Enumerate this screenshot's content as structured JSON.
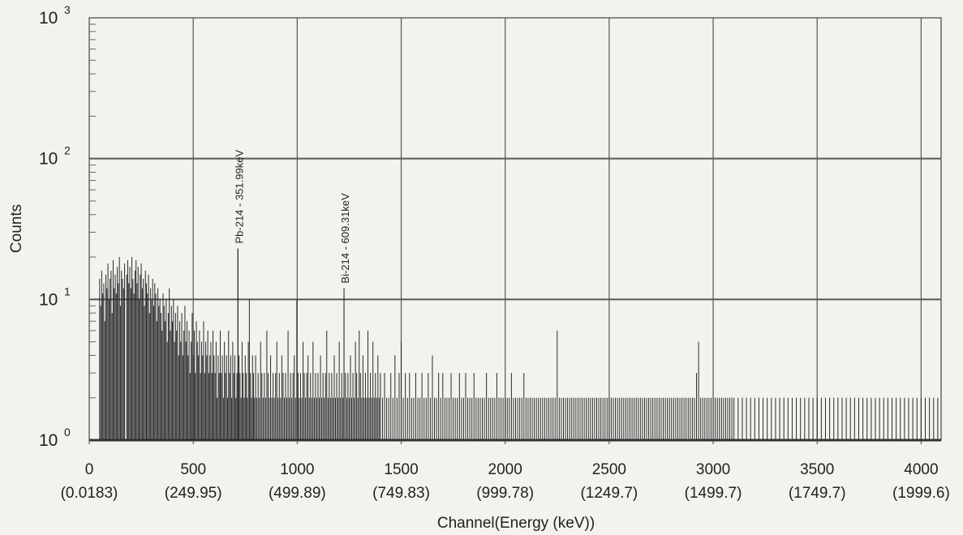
{
  "chart_data": {
    "type": "bar",
    "title": "",
    "xlabel": "Channel(Energy (keV))",
    "ylabel": "Counts",
    "xlim": [
      0,
      4096
    ],
    "ylim": [
      1,
      1000
    ],
    "yscale": "log",
    "grid": true,
    "x_ticks": [
      {
        "value": 0,
        "channel": "0",
        "energy": "(0.0183)"
      },
      {
        "value": 500,
        "channel": "500",
        "energy": "(249.95)"
      },
      {
        "value": 1000,
        "channel": "1000",
        "energy": "(499.89)"
      },
      {
        "value": 1500,
        "channel": "1500",
        "energy": "(749.83)"
      },
      {
        "value": 2000,
        "channel": "2000",
        "energy": "(999.78)"
      },
      {
        "value": 2500,
        "channel": "2500",
        "energy": "(1249.7)"
      },
      {
        "value": 3000,
        "channel": "3000",
        "energy": "(1499.7)"
      },
      {
        "value": 3500,
        "channel": "3500",
        "energy": "(1749.7)"
      },
      {
        "value": 4000,
        "channel": "4000",
        "energy": "(1999.6)"
      }
    ],
    "y_ticks": [
      {
        "value": 1,
        "base": "10",
        "exp": "0"
      },
      {
        "value": 10,
        "base": "10",
        "exp": "1"
      },
      {
        "value": 100,
        "base": "10",
        "exp": "2"
      },
      {
        "value": 1000,
        "base": "10",
        "exp": "3"
      }
    ],
    "annotations": [
      {
        "channel": 715,
        "counts": 23,
        "text": "Pb-214 - 351.99keV"
      },
      {
        "channel": 1225,
        "counts": 12,
        "text": "Bi-214 - 609.31keV"
      }
    ],
    "spectrum_channels": [
      50,
      55,
      60,
      65,
      70,
      75,
      80,
      85,
      90,
      95,
      100,
      105,
      110,
      115,
      120,
      125,
      130,
      135,
      140,
      145,
      150,
      155,
      160,
      165,
      170,
      175,
      180,
      185,
      190,
      195,
      200,
      205,
      210,
      215,
      220,
      225,
      230,
      235,
      240,
      245,
      250,
      255,
      260,
      265,
      270,
      275,
      280,
      285,
      290,
      295,
      300,
      305,
      310,
      315,
      320,
      325,
      330,
      335,
      340,
      345,
      350,
      355,
      360,
      365,
      370,
      375,
      380,
      385,
      390,
      395,
      400,
      405,
      410,
      415,
      420,
      425,
      430,
      435,
      440,
      445,
      450,
      455,
      460,
      465,
      470,
      475,
      480,
      485,
      490,
      495,
      500,
      505,
      510,
      515,
      520,
      525,
      530,
      535,
      540,
      545,
      550,
      555,
      560,
      565,
      570,
      575,
      580,
      585,
      590,
      595,
      600,
      605,
      610,
      615,
      620,
      625,
      630,
      635,
      640,
      645,
      650,
      655,
      660,
      665,
      670,
      675,
      680,
      685,
      690,
      695,
      700,
      705,
      710,
      715,
      720,
      725,
      730,
      735,
      740,
      745,
      750,
      755,
      760,
      765,
      770,
      775,
      780,
      785,
      790,
      795,
      800,
      806,
      812,
      818,
      824,
      830,
      836,
      842,
      848,
      854,
      860,
      866,
      872,
      878,
      884,
      890,
      896,
      902,
      908,
      914,
      920,
      926,
      932,
      938,
      944,
      950,
      956,
      962,
      968,
      974,
      980,
      986,
      992,
      998,
      1004,
      1010,
      1016,
      1022,
      1028,
      1034,
      1040,
      1046,
      1052,
      1058,
      1064,
      1070,
      1076,
      1082,
      1088,
      1094,
      1100,
      1106,
      1112,
      1118,
      1124,
      1130,
      1136,
      1142,
      1148,
      1154,
      1160,
      1166,
      1172,
      1178,
      1184,
      1190,
      1196,
      1202,
      1208,
      1214,
      1220,
      1225,
      1232,
      1238,
      1244,
      1250,
      1256,
      1262,
      1268,
      1274,
      1280,
      1286,
      1292,
      1298,
      1304,
      1310,
      1316,
      1322,
      1328,
      1334,
      1340,
      1346,
      1352,
      1358,
      1364,
      1370,
      1376,
      1382,
      1388,
      1394,
      1400,
      1410,
      1420,
      1430,
      1440,
      1450,
      1460,
      1470,
      1480,
      1490,
      1500,
      1510,
      1520,
      1530,
      1540,
      1550,
      1560,
      1570,
      1580,
      1590,
      1600,
      1610,
      1620,
      1630,
      1640,
      1650,
      1660,
      1670,
      1680,
      1690,
      1700,
      1710,
      1720,
      1730,
      1740,
      1750,
      1760,
      1770,
      1780,
      1790,
      1800,
      1810,
      1820,
      1830,
      1840,
      1850,
      1860,
      1870,
      1880,
      1890,
      1900,
      1910,
      1920,
      1930,
      1940,
      1950,
      1960,
      1970,
      1980,
      1990,
      2000,
      2010,
      2020,
      2030,
      2040,
      2050,
      2060,
      2070,
      2080,
      2090,
      2100,
      2110,
      2120,
      2130,
      2140,
      2150,
      2160,
      2170,
      2180,
      2190,
      2200,
      2210,
      2220,
      2230,
      2240,
      2250,
      2260,
      2270,
      2280,
      2290,
      2300,
      2310,
      2320,
      2330,
      2340,
      2350,
      2360,
      2370,
      2380,
      2390,
      2400,
      2410,
      2420,
      2430,
      2440,
      2450,
      2460,
      2470,
      2480,
      2490,
      2500,
      2510,
      2520,
      2530,
      2540,
      2550,
      2560,
      2570,
      2580,
      2590,
      2600,
      2610,
      2620,
      2630,
      2640,
      2650,
      2660,
      2670,
      2680,
      2690,
      2700,
      2710,
      2720,
      2730,
      2740,
      2750,
      2760,
      2770,
      2780,
      2790,
      2800,
      2810,
      2820,
      2830,
      2840,
      2850,
      2860,
      2870,
      2880,
      2890,
      2900,
      2910,
      2920,
      2930,
      2940,
      2950,
      2960,
      2970,
      2980,
      2990,
      3000,
      3010,
      3020,
      3030,
      3040,
      3050,
      3060,
      3070,
      3080,
      3090,
      3100,
      3120,
      3140,
      3160,
      3180,
      3200,
      3220,
      3240,
      3260,
      3280,
      3300,
      3320,
      3340,
      3360,
      3380,
      3400,
      3420,
      3440,
      3460,
      3480,
      3500,
      3520,
      3540,
      3560,
      3580,
      3600,
      3620,
      3640,
      3660,
      3680,
      3700,
      3720,
      3740,
      3760,
      3780,
      3800,
      3820,
      3840,
      3860,
      3880,
      3900,
      3920,
      3940,
      3960,
      3980,
      4000,
      4020,
      4040,
      4060,
      4080
    ],
    "spectrum_counts": [
      14,
      9,
      16,
      11,
      13,
      7,
      15,
      12,
      18,
      10,
      14,
      16,
      8,
      19,
      12,
      15,
      11,
      17,
      13,
      20,
      9,
      16,
      14,
      12,
      18,
      1,
      15,
      19,
      13,
      17,
      12,
      20,
      14,
      11,
      16,
      19,
      13,
      17,
      10,
      15,
      18,
      12,
      14,
      9,
      16,
      13,
      11,
      15,
      8,
      12,
      10,
      14,
      9,
      13,
      11,
      7,
      12,
      9,
      10,
      8,
      6,
      11,
      9,
      7,
      10,
      5,
      8,
      12,
      6,
      9,
      7,
      10,
      5,
      8,
      6,
      9,
      4,
      7,
      5,
      8,
      4,
      6,
      9,
      5,
      7,
      4,
      6,
      3,
      5,
      8,
      4,
      6,
      3,
      7,
      5,
      4,
      6,
      3,
      5,
      4,
      7,
      3,
      5,
      4,
      6,
      3,
      4,
      5,
      3,
      6,
      4,
      3,
      5,
      2,
      4,
      3,
      6,
      3,
      4,
      2,
      5,
      3,
      4,
      2,
      6,
      3,
      4,
      2,
      5,
      3,
      4,
      2,
      3,
      23,
      4,
      3,
      2,
      5,
      3,
      2,
      4,
      3,
      2,
      5,
      10,
      3,
      2,
      4,
      3,
      2,
      4,
      2,
      3,
      2,
      5,
      3,
      2,
      3,
      2,
      6,
      3,
      2,
      4,
      2,
      3,
      2,
      3,
      5,
      2,
      3,
      2,
      4,
      3,
      2,
      3,
      2,
      6,
      2,
      3,
      2,
      3,
      4,
      2,
      10,
      3,
      2,
      3,
      2,
      5,
      3,
      2,
      3,
      4,
      2,
      3,
      2,
      5,
      2,
      3,
      2,
      3,
      2,
      4,
      2,
      3,
      2,
      3,
      6,
      2,
      3,
      2,
      3,
      2,
      4,
      2,
      3,
      2,
      5,
      2,
      3,
      2,
      12,
      3,
      2,
      3,
      2,
      4,
      2,
      3,
      2,
      5,
      3,
      2,
      6,
      3,
      2,
      4,
      2,
      3,
      2,
      6,
      2,
      3,
      2,
      5,
      2,
      3,
      2,
      4,
      2,
      3,
      2,
      3,
      2,
      2,
      3,
      2,
      4,
      2,
      3,
      5,
      2,
      3,
      2,
      3,
      2,
      2,
      3,
      2,
      2,
      3,
      2,
      2,
      3,
      2,
      4,
      2,
      2,
      3,
      2,
      3,
      2,
      2,
      2,
      3,
      2,
      2,
      2,
      3,
      2,
      2,
      3,
      2,
      2,
      2,
      3,
      2,
      2,
      2,
      2,
      2,
      3,
      2,
      2,
      2,
      2,
      3,
      2,
      2,
      2,
      2,
      2,
      2,
      3,
      2,
      2,
      2,
      2,
      2,
      3,
      2,
      2,
      2,
      2,
      2,
      2,
      2,
      2,
      2,
      2,
      2,
      2,
      2,
      2,
      2,
      6,
      2,
      2,
      2,
      2,
      2,
      2,
      2,
      2,
      2,
      2,
      2,
      2,
      2,
      2,
      2,
      2,
      2,
      2,
      2,
      2,
      2,
      2,
      2,
      2,
      2,
      2,
      2,
      2,
      2,
      2,
      2,
      2,
      2,
      2,
      2,
      2,
      2,
      2,
      2,
      2,
      2,
      2,
      2,
      2,
      2,
      2,
      2,
      2,
      2,
      2,
      2,
      2,
      2,
      2,
      2,
      2,
      2,
      2,
      2,
      2,
      2,
      2,
      2,
      2,
      2,
      2,
      3,
      5,
      2,
      2,
      2,
      2,
      2,
      2,
      2,
      2,
      2,
      2,
      2,
      2,
      2,
      2,
      2,
      2,
      2,
      2,
      2,
      2,
      2,
      2,
      2,
      2,
      2,
      2,
      2,
      2,
      2,
      2,
      2,
      2,
      2,
      2,
      2,
      2,
      2,
      2,
      2,
      2,
      2,
      2,
      2,
      2,
      2,
      2,
      2,
      2,
      2,
      2,
      2,
      2,
      2,
      2,
      2,
      2,
      2,
      2,
      2,
      2,
      2,
      2,
      2,
      2,
      2,
      2
    ]
  }
}
